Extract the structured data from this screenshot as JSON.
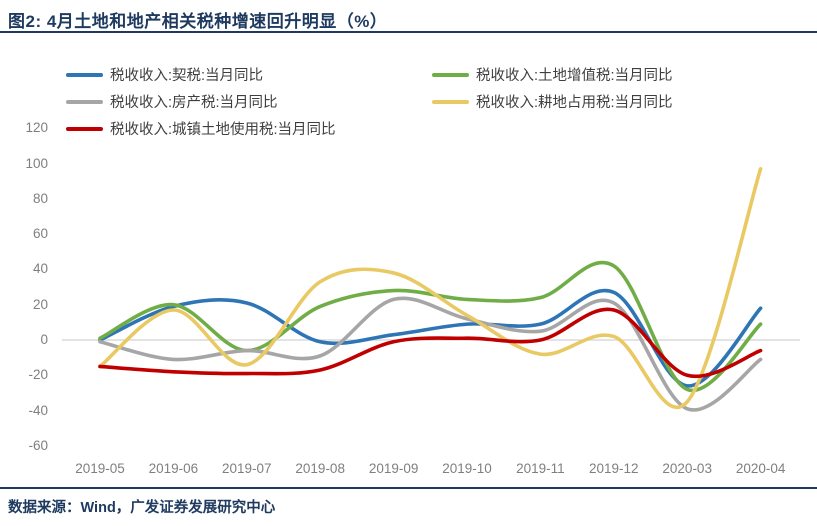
{
  "title": "图2:  4月土地和地产相关税种增速回升明显（%）",
  "footer": {
    "source_text": "数据来源：Wind，广发证券发展研究中心"
  },
  "colors": {
    "accent_navy": "#1E3A5F",
    "axis_text": "#7F7F7F",
    "zero_gridline": "#D2D2D2",
    "legend_text": "#3F3F3F"
  },
  "chart_data": {
    "type": "line",
    "smooth": true,
    "grid": "zero-line-only",
    "legend_position": "top",
    "legend_columns": 2,
    "ylim": [
      -60,
      120
    ],
    "y_ticks": [
      120,
      100,
      80,
      60,
      40,
      20,
      0,
      -20,
      -40,
      -60
    ],
    "categories": [
      "2019-05",
      "2019-06",
      "2019-07",
      "2019-08",
      "2019-09",
      "2019-10",
      "2019-11",
      "2019-12",
      "2020-03",
      "2020-04"
    ],
    "series": [
      {
        "id": "deed-tax",
        "name": "税收收入:契税:当月同比",
        "color": "#2E75B6",
        "values": [
          0,
          19,
          21,
          -1,
          3,
          9,
          9,
          27,
          -26,
          18
        ]
      },
      {
        "id": "land-appreciation-tax",
        "name": "税收收入:土地增值税:当月同比",
        "color": "#70AD47",
        "values": [
          1,
          20,
          -6,
          19,
          28,
          23,
          24,
          42,
          -28,
          9
        ]
      },
      {
        "id": "property-tax",
        "name": "税收收入:房产税:当月同比",
        "color": "#A6A6A6",
        "values": [
          -1,
          -11,
          -6,
          -9,
          23,
          12,
          5,
          21,
          -39,
          -11
        ]
      },
      {
        "id": "farmland-occupation-tax",
        "name": "税收收入:耕地占用税:当月同比",
        "color": "#E9C963",
        "values": [
          -15,
          17,
          -14,
          33,
          38,
          14,
          -8,
          2,
          -35,
          97
        ]
      },
      {
        "id": "urban-land-use-tax",
        "name": "税收收入:城镇土地使用税:当月同比",
        "color": "#C00000",
        "values": [
          -15,
          -18,
          -19,
          -17,
          -1,
          1,
          0,
          17,
          -20,
          -6
        ]
      }
    ]
  }
}
